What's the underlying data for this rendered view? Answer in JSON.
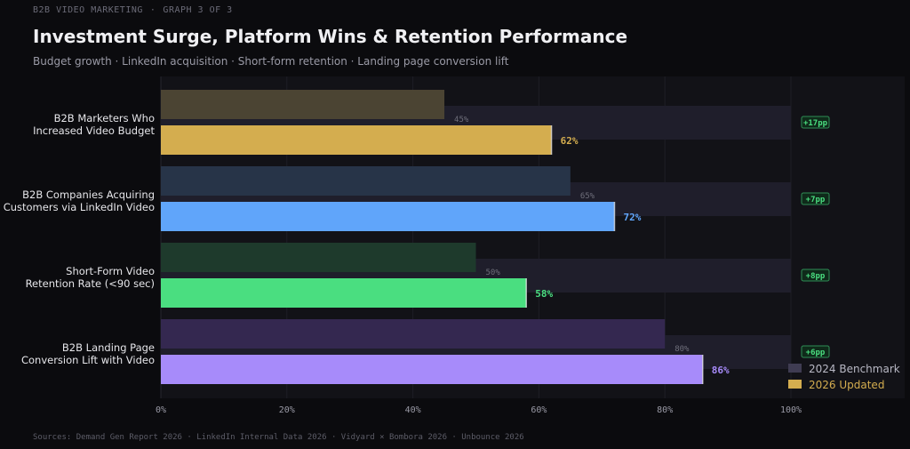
{
  "header": {
    "eyebrow_left": "B2B VIDEO MARKETING",
    "eyebrow_sep": "·",
    "eyebrow_right": "GRAPH 3 OF 3",
    "title": "Investment Surge, Platform Wins & Retention Performance",
    "subtitle": "Budget growth · LinkedIn acquisition · Short-form retention · Landing page conversion lift"
  },
  "footer": {
    "sources": "Sources: Demand Gen Report 2026 · LinkedIn Internal Data 2026 · Vidyard × Bombora 2026 · Unbounce 2026"
  },
  "chart_data": {
    "type": "bar",
    "orientation": "horizontal",
    "categories": [
      [
        "B2B Marketers Who",
        "Increased Video Budget"
      ],
      [
        "B2B Companies Acquiring",
        "Customers via LinkedIn Video"
      ],
      [
        "Short-Form Video",
        "Retention Rate (<90 sec)"
      ],
      [
        "B2B Landing Page",
        "Conversion Lift with Video"
      ]
    ],
    "series": [
      {
        "name": "2024 Benchmark",
        "values": [
          45,
          65,
          50,
          80
        ]
      },
      {
        "name": "2026 Updated",
        "values": [
          62,
          72,
          58,
          86
        ]
      }
    ],
    "deltas": [
      "+17pp",
      "+7pp",
      "+8pp",
      "+6pp"
    ],
    "value_suffix": "%",
    "xlim": [
      0,
      100
    ],
    "xticks": [
      0,
      20,
      40,
      60,
      80,
      100
    ],
    "grid": true,
    "legend_position": "bottom-right",
    "colors": {
      "updated": [
        "#d4ad4f",
        "#60a5fa",
        "#4ade80",
        "#a78bfa"
      ],
      "benchmark": [
        "#4b4433",
        "#273448",
        "#1e3a2c",
        "#342850"
      ],
      "track": "#1f1e2b",
      "legend_benchmark": "#3f3c52",
      "legend_updated": "#d4ad4f",
      "delta": "#4ade80"
    }
  }
}
